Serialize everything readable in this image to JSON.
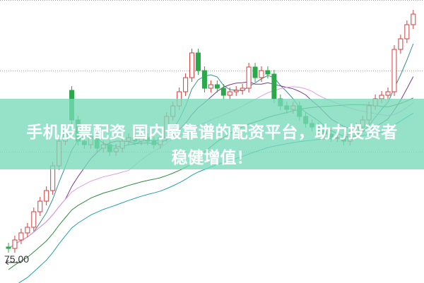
{
  "banner": {
    "line1": "手机股票配资 国内最靠谱的配资平台，助力投资者",
    "line2": "稳健增值！"
  },
  "chart_data": {
    "type": "candlestick",
    "price_label": "75.00",
    "grid": true,
    "colors": {
      "up": "#d43c3c",
      "down": "#2aa84a",
      "ma5": "#3a8f8f",
      "ma10": "#7a3a8a",
      "ma20": "#e0a0e0",
      "ma30": "#2e8b3e",
      "ma60": "#22a0a8"
    },
    "open": [
      75.9,
      75.8,
      76.4,
      76.9,
      77.3,
      78.4,
      79.15,
      79.9,
      81.65,
      83.4,
      87.0,
      84.9,
      83.4,
      83.15,
      83.65,
      82.9,
      83.15,
      82.65,
      82.9,
      83.4,
      83.65,
      83.4,
      83.65,
      83.4,
      83.15,
      83.65,
      85.15,
      85.9,
      86.9,
      87.9,
      89.65,
      88.4,
      87.15,
      87.4,
      87.15,
      86.65,
      86.9,
      87.0,
      87.15,
      88.65,
      87.9,
      88.4,
      88.15,
      86.4,
      85.9,
      85.65,
      85.9,
      85.15,
      84.65,
      84.4,
      84.15,
      83.9,
      83.65,
      83.65,
      83.4,
      83.9,
      84.4,
      84.9,
      85.9,
      86.4,
      86.65,
      86.9,
      89.9,
      90.65,
      91.65
    ],
    "close": [
      75.8,
      76.4,
      76.9,
      77.3,
      78.4,
      79.15,
      79.9,
      81.65,
      83.4,
      83.9,
      84.9,
      83.4,
      83.15,
      83.65,
      82.9,
      83.15,
      82.65,
      82.9,
      83.4,
      83.65,
      83.4,
      83.65,
      83.4,
      83.15,
      83.65,
      85.15,
      85.9,
      86.9,
      87.9,
      89.65,
      88.4,
      87.15,
      87.4,
      87.15,
      86.65,
      86.9,
      87.0,
      87.15,
      88.65,
      87.9,
      88.4,
      88.15,
      86.4,
      85.9,
      85.65,
      85.9,
      85.15,
      84.65,
      84.4,
      84.15,
      83.9,
      83.65,
      83.65,
      83.4,
      83.9,
      84.4,
      84.9,
      85.9,
      86.4,
      86.65,
      86.9,
      89.9,
      90.65,
      91.65,
      92.4
    ]
  }
}
